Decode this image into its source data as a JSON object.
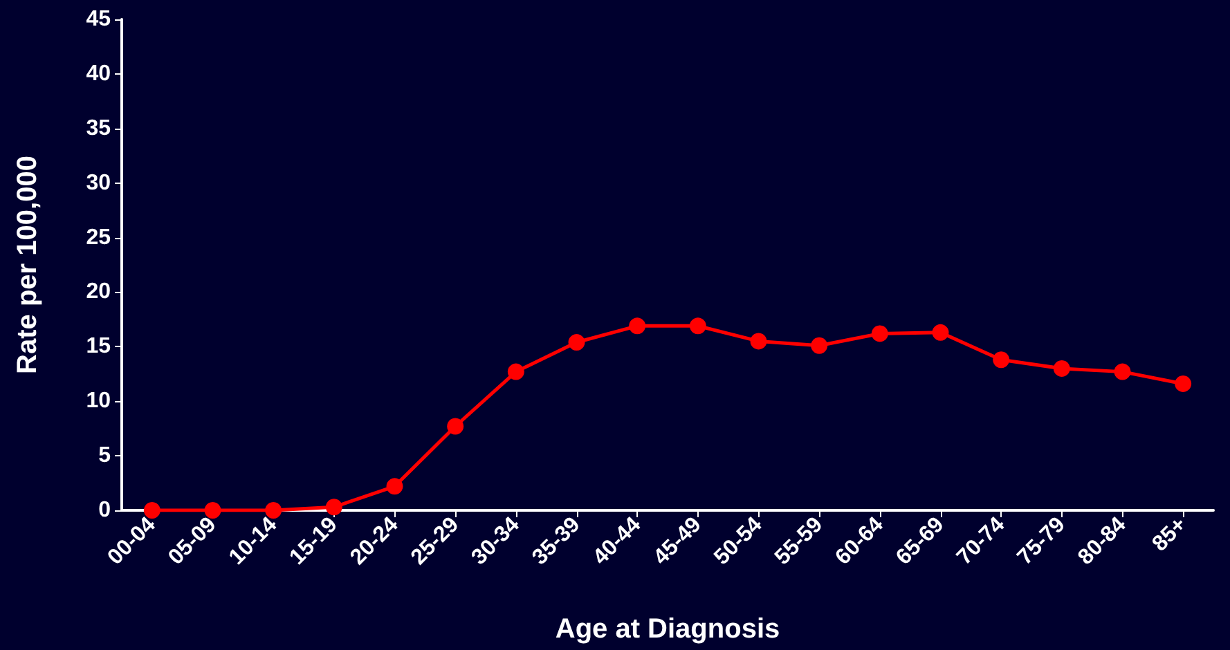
{
  "chart_data": {
    "type": "line",
    "xlabel": "Age at Diagnosis",
    "ylabel": "Rate per 100,000",
    "categories": [
      "00-04",
      "05-09",
      "10-14",
      "15-19",
      "20-24",
      "25-29",
      "30-34",
      "35-39",
      "40-44",
      "45-49",
      "50-54",
      "55-59",
      "60-64",
      "65-69",
      "70-74",
      "75-79",
      "80-84",
      "85+"
    ],
    "series": [
      {
        "color": "#ff0000",
        "values": [
          0,
          0,
          0,
          0.3,
          2.2,
          7.7,
          12.7,
          15.4,
          16.9,
          16.9,
          15.5,
          15.1,
          16.2,
          16.3,
          13.8,
          13.0,
          12.7,
          11.6
        ]
      }
    ],
    "ylim": [
      0,
      45
    ],
    "yticks": [
      0,
      5,
      10,
      15,
      20,
      25,
      30,
      35,
      40,
      45
    ],
    "grid": false,
    "marker": "circle",
    "line_style": "solid"
  }
}
